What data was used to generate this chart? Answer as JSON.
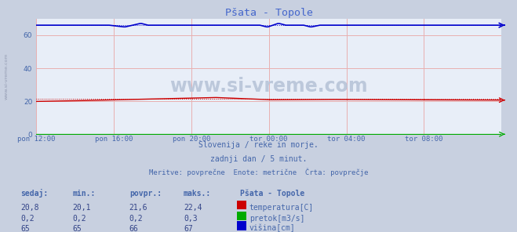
{
  "title": "Pšata - Topole",
  "bg_color": "#c8d0e0",
  "plot_bg_color": "#e8eef8",
  "grid_color_h": "#d8a0a0",
  "grid_color_v": "#d8a0a0",
  "x_tick_labels": [
    "pon 12:00",
    "pon 16:00",
    "pon 20:00",
    "tor 00:00",
    "tor 04:00",
    "tor 08:00"
  ],
  "x_tick_positions": [
    0.0,
    0.166667,
    0.333333,
    0.5,
    0.666667,
    0.833333
  ],
  "ylim": [
    0,
    70
  ],
  "yticks": [
    0,
    20,
    40,
    60
  ],
  "subtitle1": "Slovenija / reke in morje.",
  "subtitle2": "zadnji dan / 5 minut.",
  "subtitle3": "Meritve: povprečne  Enote: metrične  Črta: povprečje",
  "watermark": "www.si-vreme.com",
  "text_color": "#4466aa",
  "title_color": "#4466cc",
  "table_headers": [
    "sedaj:",
    "min.:",
    "povpr.:",
    "maks.:"
  ],
  "table_data": [
    [
      "20,8",
      "20,1",
      "21,6",
      "22,4"
    ],
    [
      "0,2",
      "0,2",
      "0,2",
      "0,3"
    ],
    [
      "65",
      "65",
      "66",
      "67"
    ]
  ],
  "legend_title": "Pšata - Topole",
  "legend_items": [
    "temperatura[C]",
    "pretok[m3/s]",
    "višina[cm]"
  ],
  "legend_colors": [
    "#cc0000",
    "#00aa00",
    "#0000cc"
  ],
  "temp_color": "#cc0000",
  "pretok_color": "#00aa00",
  "visina_color": "#0000cc",
  "n_points": 288
}
